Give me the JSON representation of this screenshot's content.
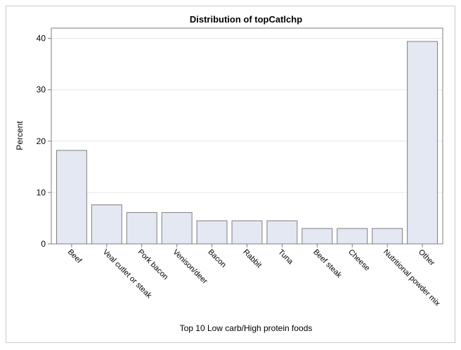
{
  "chart_data": {
    "type": "bar",
    "title": "Distribution of topCatlchp",
    "xlabel": "Top 10 Low carb/High protein foods",
    "ylabel": "Percent",
    "categories": [
      "Beef",
      "Veal cutlet or steak",
      "Pork bacon",
      "Venison/deer",
      "Bacon",
      "Rabbit",
      "Tuna",
      "Beef steak",
      "Cheese",
      "Nutritional powder mix",
      "Other"
    ],
    "values": [
      18.2,
      7.6,
      6.1,
      6.1,
      4.5,
      4.5,
      4.5,
      3.0,
      3.0,
      3.0,
      39.4
    ],
    "ylim": [
      0,
      42
    ],
    "yticks": [
      0,
      10,
      20,
      30,
      40
    ],
    "grid": true,
    "colors": {
      "bar_fill": "#e3e8f2",
      "bar_stroke": "#7f7f7f",
      "grid": "#e6e6e6",
      "axis": "#7f7f7f"
    }
  }
}
